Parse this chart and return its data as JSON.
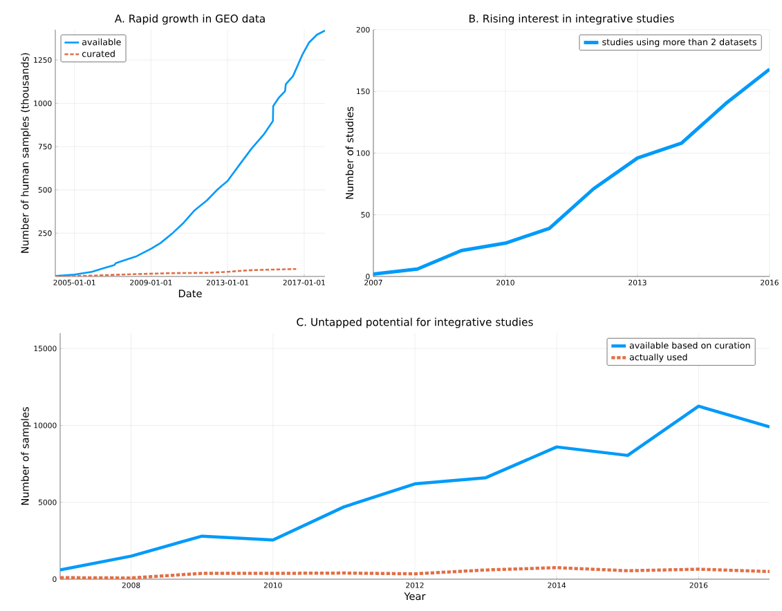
{
  "chart_data": [
    {
      "type": "line",
      "title": "A. Rapid growth in GEO data",
      "xlabel": "Date",
      "ylabel": "Number of human samples (thousands)",
      "xlim": [
        "2004-01-01",
        "2018-02-01"
      ],
      "ylim": [
        0,
        1425
      ],
      "xticks": [
        "2005-01-01",
        "2009-01-01",
        "2013-01-01",
        "2017-01-01"
      ],
      "yticks": [
        250,
        500,
        750,
        1000,
        1250
      ],
      "grid": true,
      "legend": "top left",
      "series": [
        {
          "name": "available",
          "color": "#009afa",
          "line_style": "solid",
          "x": [
            "2004-01-01",
            "2005-01-01",
            "2005-12-01",
            "2006-07-01",
            "2007-02-01",
            "2007-03-01",
            "2007-09-01",
            "2008-04-01",
            "2009-01-01",
            "2009-07-01",
            "2010-02-01",
            "2010-09-01",
            "2011-04-01",
            "2011-12-01",
            "2012-07-01",
            "2013-01-01",
            "2013-09-01",
            "2014-04-01",
            "2014-12-01",
            "2015-05-15",
            "2015-05-20",
            "2015-09-01",
            "2016-01-01",
            "2016-01-15",
            "2016-06-01",
            "2016-12-01",
            "2017-04-01",
            "2017-09-01",
            "2018-02-01"
          ],
          "values": [
            3,
            11,
            27,
            47,
            66,
            77,
            96,
            117,
            160,
            193,
            246,
            306,
            379,
            439,
            505,
            552,
            652,
            738,
            824,
            898,
            984,
            1031,
            1070,
            1110,
            1157,
            1283,
            1350,
            1396,
            1420
          ]
        },
        {
          "name": "curated",
          "color": "#e26f46",
          "line_style": "dashed",
          "x": [
            "2004-01-01",
            "2006-01-01",
            "2008-01-01",
            "2010-01-01",
            "2012-01-01",
            "2013-01-01",
            "2014-01-01",
            "2015-01-01",
            "2016-08-01"
          ],
          "values": [
            0,
            5,
            13,
            19,
            21,
            27,
            35,
            39,
            43
          ]
        }
      ]
    },
    {
      "type": "line",
      "title": "B. Rising interest in integrative studies",
      "ylabel": "Number of studies",
      "x": [
        2007,
        2008,
        2009,
        2010,
        2011,
        2012,
        2013,
        2014,
        2015,
        2016
      ],
      "xlim": [
        2007,
        2016
      ],
      "ylim": [
        0,
        200
      ],
      "xticks": [
        2007,
        2010,
        2013,
        2016
      ],
      "yticks": [
        0,
        50,
        100,
        150,
        200
      ],
      "grid": true,
      "legend": "top right",
      "series": [
        {
          "name": "studies using more than 2 datasets",
          "color": "#009afa",
          "line_style": "solid",
          "values": [
            2,
            6,
            21,
            27,
            39,
            71,
            96,
            108,
            140,
            168
          ]
        }
      ]
    },
    {
      "type": "line",
      "title": "C. Untapped potential for integrative studies",
      "xlabel": "Year",
      "ylabel": "Number of samples",
      "x": [
        2007,
        2008,
        2009,
        2010,
        2011,
        2012,
        2013,
        2014,
        2015,
        2016,
        2017
      ],
      "xlim": [
        2007,
        2017
      ],
      "ylim": [
        0,
        16000
      ],
      "xticks": [
        2008,
        2010,
        2012,
        2014,
        2016
      ],
      "yticks": [
        0,
        5000,
        10000,
        15000
      ],
      "grid": true,
      "legend": "top right",
      "series": [
        {
          "name": "available based on curation",
          "color": "#009afa",
          "line_style": "solid",
          "values": [
            600,
            1500,
            2800,
            2550,
            4700,
            6200,
            6600,
            8600,
            8050,
            11250,
            9900
          ]
        },
        {
          "name": "actually used",
          "color": "#e26f46",
          "line_style": "dashed",
          "values": [
            100,
            80,
            380,
            380,
            400,
            350,
            600,
            750,
            550,
            650,
            500
          ]
        }
      ]
    }
  ]
}
